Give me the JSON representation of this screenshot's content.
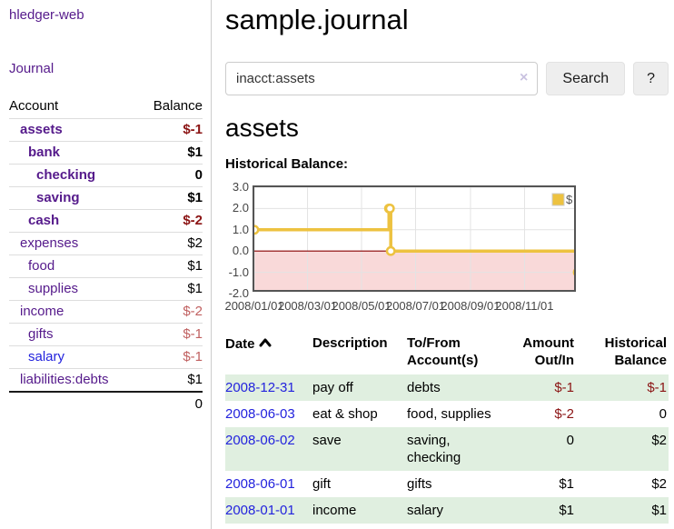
{
  "app": {
    "brand": "hledger-web"
  },
  "sidebar": {
    "journal_label": "Journal",
    "table": {
      "account_header": "Account",
      "balance_header": "Balance",
      "rows": [
        {
          "account": "assets",
          "balance": "$-1",
          "level": 1,
          "bold": true,
          "balance_class": "neg-strong"
        },
        {
          "account": "bank",
          "balance": "$1",
          "level": 2,
          "bold": true
        },
        {
          "account": "checking",
          "balance": "0",
          "level": 3,
          "bold": true
        },
        {
          "account": "saving",
          "balance": "$1",
          "level": 3,
          "bold": true
        },
        {
          "account": "cash",
          "balance": "$-2",
          "level": 2,
          "bold": true,
          "balance_class": "neg-strong"
        },
        {
          "account": "expenses",
          "balance": "$2",
          "level": 1,
          "bold": false
        },
        {
          "account": "food",
          "balance": "$1",
          "level": 2,
          "bold": false
        },
        {
          "account": "supplies",
          "balance": "$1",
          "level": 2,
          "bold": false
        },
        {
          "account": "income",
          "balance": "$-2",
          "level": 1,
          "bold": false,
          "balance_class": "neg-soft"
        },
        {
          "account": "gifts",
          "balance": "$-1",
          "level": 2,
          "bold": false,
          "balance_class": "neg-soft"
        },
        {
          "account": "salary",
          "balance": "$-1",
          "level": 2,
          "bold": false,
          "balance_class": "neg-soft",
          "link_color": "blue"
        },
        {
          "account": "liabilities:debts",
          "balance": "$1",
          "level": 1,
          "bold": false
        }
      ],
      "total": "0"
    }
  },
  "header": {
    "title": "sample.journal"
  },
  "search": {
    "value": "inacct:assets",
    "clear_icon": "×",
    "button_label": "Search",
    "help_label": "?"
  },
  "main": {
    "account_heading": "assets",
    "chart_label": "Historical Balance:"
  },
  "chart_data": {
    "type": "line",
    "step": true,
    "title": "Historical Balance:",
    "x_range": [
      "2008-01-01",
      "2008-12-31"
    ],
    "ylim": [
      -2,
      3
    ],
    "x_ticks": [
      {
        "label": "2008/01/01",
        "date": "2008-01-01"
      },
      {
        "label": "2008/03/01",
        "date": "2008-03-01"
      },
      {
        "label": "2008/05/01",
        "date": "2008-05-01"
      },
      {
        "label": "2008/07/01",
        "date": "2008-07-01"
      },
      {
        "label": "2008/09/01",
        "date": "2008-09-01"
      },
      {
        "label": "2008/11/01",
        "date": "2008-11-01"
      }
    ],
    "y_ticks": [
      "3.0",
      "2.0",
      "1.0",
      "0.0",
      "-1.0",
      "-2.0"
    ],
    "series": [
      {
        "name": "$",
        "color": "#edc240",
        "points": [
          [
            "2008-01-01",
            1
          ],
          [
            "2008-06-01",
            2
          ],
          [
            "2008-06-02",
            2
          ],
          [
            "2008-06-03",
            0
          ],
          [
            "2008-12-31",
            -1
          ]
        ]
      }
    ],
    "legend": {
      "label": "$",
      "position": "top-right"
    },
    "grid": true,
    "grid_color": "#e3e3e3",
    "border_color": "#545454",
    "negative_region_color": "#f9d9d9",
    "zero_line_color": "#8b0000"
  },
  "register": {
    "headers": {
      "date": "Date",
      "sort": "asc",
      "description": "Description",
      "accounts_line1": "To/From",
      "accounts_line2": "Account(s)",
      "amount_line1": "Amount",
      "amount_line2": "Out/In",
      "balance_line1": "Historical",
      "balance_line2": "Balance"
    },
    "rows": [
      {
        "date": "2008-12-31",
        "description": "pay off",
        "accounts": "debts",
        "amount": "$-1",
        "balance": "$-1"
      },
      {
        "date": "2008-06-03",
        "description": "eat & shop",
        "accounts": "food, supplies",
        "amount": "$-2",
        "balance": "0"
      },
      {
        "date": "2008-06-02",
        "description": "save",
        "accounts": "saving, checking",
        "amount": "0",
        "balance": "$2"
      },
      {
        "date": "2008-06-01",
        "description": "gift",
        "accounts": "gifts",
        "amount": "$1",
        "balance": "$2"
      },
      {
        "date": "2008-01-01",
        "description": "income",
        "accounts": "salary",
        "amount": "$1",
        "balance": "$1"
      }
    ]
  },
  "colors": {
    "link_purple": "#551a8b",
    "link_blue": "#2323dd",
    "negative_strong": "#8b1414",
    "negative_soft": "#c06060",
    "row_green": "#e0efe0",
    "series_yellow": "#edc240",
    "button_bg": "#eeeeee"
  }
}
